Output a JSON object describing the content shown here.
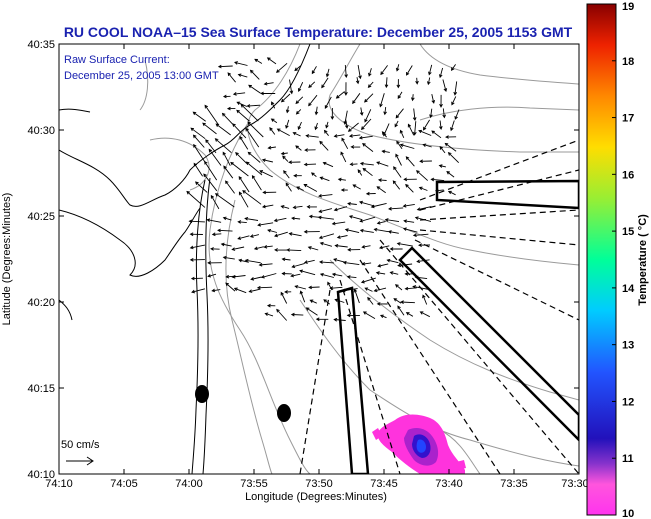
{
  "title": "RU COOL  NOAA–15  Sea Surface Temperature:  December 25, 2005 1153 GMT",
  "inset": {
    "line1": "Raw Surface Current:",
    "line2": "December 25, 2005 13:00 GMT"
  },
  "scale_label": "50 cm/s",
  "x_axis": {
    "label": "Longitude (Degrees:Minutes)",
    "ticks": [
      "74:10",
      "74:05",
      "74:00",
      "73:55",
      "73:50",
      "73:45",
      "73:40",
      "73:35",
      "73:30"
    ]
  },
  "y_axis": {
    "label": "Latitude (Degrees:Minutes)",
    "ticks": [
      "40:35",
      "40:30",
      "40:25",
      "40:20",
      "40:15",
      "40:10"
    ]
  },
  "colorbar": {
    "label": "Temperature ( °C)",
    "ticks": [
      "19",
      "18",
      "17",
      "16",
      "15",
      "14",
      "13",
      "12",
      "11",
      "10"
    ],
    "min": 10,
    "max": 19,
    "colors": [
      "#ff33dd",
      "#3311cc",
      "#2244ff",
      "#00ddff",
      "#33ff66",
      "#ddee22",
      "#ffaa00",
      "#ff4400",
      "#cc0000",
      "#880000"
    ]
  },
  "map": {
    "land_fill": "#ffffff",
    "coast_color": "#000000",
    "bathymetry_color": "#999999",
    "vector_color": "#000000",
    "sst_patch_colors": [
      "#ff33dd",
      "#3311cc",
      "#2244ff",
      "#aa22cc"
    ]
  }
}
